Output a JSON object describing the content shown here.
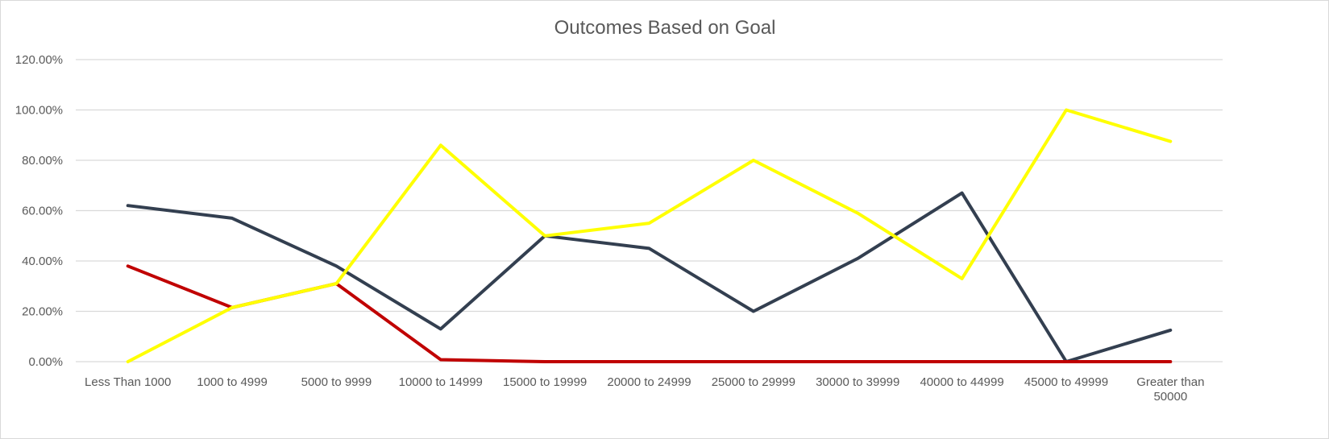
{
  "chart_data": {
    "type": "line",
    "title": "Outcomes Based on Goal",
    "xlabel": "",
    "ylabel": "",
    "categories": [
      "Less Than 1000",
      "1000 to 4999",
      "5000 to 9999",
      "10000 to 14999",
      "15000 to 19999",
      "20000 to 24999",
      "25000 to 29999",
      "30000 to 39999",
      "40000 to 44999",
      "45000 to 49999",
      "Greater than 50000"
    ],
    "ylim": [
      0,
      120
    ],
    "yticks": [
      "0.00%",
      "20.00%",
      "40.00%",
      "60.00%",
      "80.00%",
      "100.00%",
      "120.00%"
    ],
    "grid": true,
    "legend": "none",
    "series": [
      {
        "color": "#333f50",
        "values": [
          62,
          57,
          38,
          13,
          50,
          45,
          20,
          41,
          67,
          0,
          12.5
        ]
      },
      {
        "color": "#c00000",
        "values": [
          38,
          21.5,
          31,
          0.8,
          0,
          0,
          0,
          0,
          0,
          0,
          0
        ]
      },
      {
        "color": "#ffff00",
        "values": [
          0,
          21.5,
          31,
          86,
          50,
          55,
          80,
          59,
          33,
          100,
          87.5
        ]
      }
    ]
  }
}
